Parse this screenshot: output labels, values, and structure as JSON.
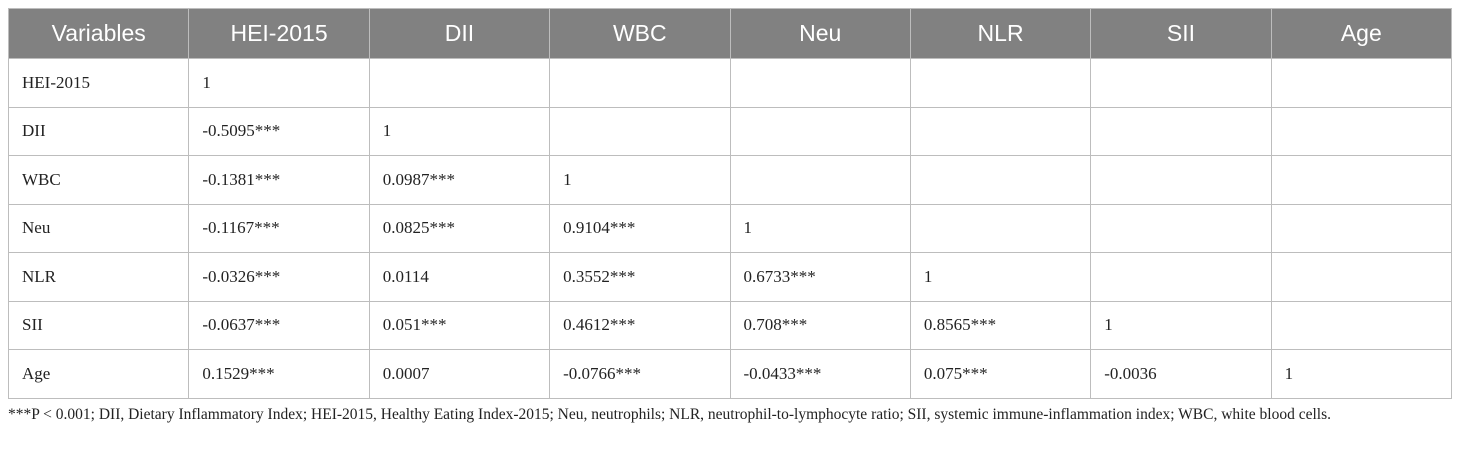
{
  "table": {
    "header": [
      "Variables",
      "HEI-2015",
      "DII",
      "WBC",
      "Neu",
      "NLR",
      "SII",
      "Age"
    ],
    "rows": [
      [
        "HEI-2015",
        "1"
      ],
      [
        "DII",
        "-0.5095***",
        "1"
      ],
      [
        "WBC",
        "-0.1381***",
        "0.0987***",
        "1"
      ],
      [
        "Neu",
        "-0.1167***",
        "0.0825***",
        "0.9104***",
        "1"
      ],
      [
        "NLR",
        "-0.0326***",
        "0.0114",
        "0.3552***",
        "0.6733***",
        "1"
      ],
      [
        "SII",
        "-0.0637***",
        "0.051***",
        "0.4612***",
        "0.708***",
        "0.8565***",
        "1"
      ],
      [
        "Age",
        "0.1529***",
        "0.0007",
        "-0.0766***",
        "-0.0433***",
        "0.075***",
        "-0.0036",
        "1"
      ]
    ]
  },
  "footnote": "***P < 0.001; DII, Dietary Inflammatory Index; HEI-2015, Healthy Eating Index-2015; Neu, neutrophils; NLR, neutrophil-to-lymphocyte ratio; SII, systemic immune-inflammation index; WBC, white blood cells."
}
